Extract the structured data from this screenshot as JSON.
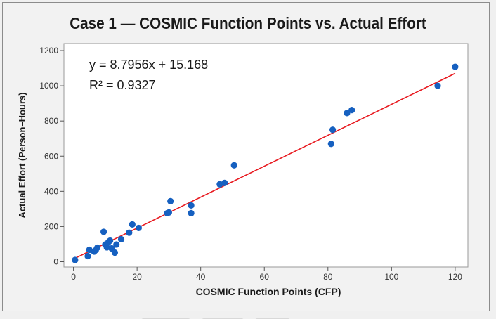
{
  "chart_data": {
    "type": "scatter",
    "title": "Case 1 — COSMIC Function Points vs. Actual Effort",
    "xlabel": "COSMIC Function Points (CFP)",
    "ylabel": "Actual Effort (Person–Hours)",
    "xlim": [
      -3,
      124
    ],
    "ylim": [
      -30,
      1240
    ],
    "xticks": [
      0,
      20,
      40,
      60,
      80,
      100,
      120
    ],
    "yticks": [
      0,
      200,
      400,
      600,
      800,
      1000,
      1200
    ],
    "grid": false,
    "points": [
      {
        "x": 0.5,
        "y": 10
      },
      {
        "x": 4.5,
        "y": 32
      },
      {
        "x": 5,
        "y": 68
      },
      {
        "x": 6.5,
        "y": 58
      },
      {
        "x": 7,
        "y": 66
      },
      {
        "x": 7.5,
        "y": 80
      },
      {
        "x": 9.5,
        "y": 170
      },
      {
        "x": 10,
        "y": 98
      },
      {
        "x": 10.5,
        "y": 82
      },
      {
        "x": 11,
        "y": 112
      },
      {
        "x": 11.5,
        "y": 120
      },
      {
        "x": 12,
        "y": 76
      },
      {
        "x": 13,
        "y": 52
      },
      {
        "x": 13.5,
        "y": 98
      },
      {
        "x": 15,
        "y": 128
      },
      {
        "x": 17.5,
        "y": 165
      },
      {
        "x": 18.5,
        "y": 212
      },
      {
        "x": 20.5,
        "y": 192
      },
      {
        "x": 29.5,
        "y": 276
      },
      {
        "x": 30,
        "y": 280
      },
      {
        "x": 30.5,
        "y": 344
      },
      {
        "x": 37,
        "y": 320
      },
      {
        "x": 37,
        "y": 276
      },
      {
        "x": 46,
        "y": 440
      },
      {
        "x": 47.5,
        "y": 448
      },
      {
        "x": 50.5,
        "y": 548
      },
      {
        "x": 81,
        "y": 670
      },
      {
        "x": 81.5,
        "y": 750
      },
      {
        "x": 86,
        "y": 845
      },
      {
        "x": 87.5,
        "y": 862
      },
      {
        "x": 114.5,
        "y": 1000
      },
      {
        "x": 120,
        "y": 1108
      }
    ],
    "trendline": {
      "slope": 8.7956,
      "intercept": 15.168,
      "x_range": [
        0.5,
        120
      ],
      "color": "#e8191f"
    },
    "point_color": "#1660c0",
    "annotations": [
      "y = 8.7956x + 15.168",
      "R² = 0.9327"
    ]
  }
}
